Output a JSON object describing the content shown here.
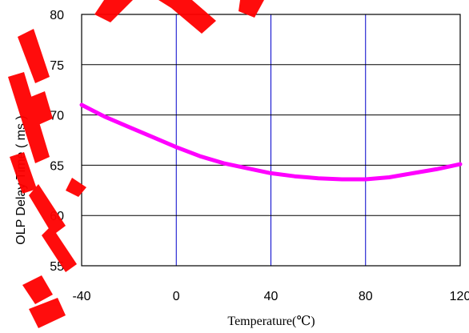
{
  "chart_data": {
    "type": "line",
    "xlabel": "Temperature(℃)",
    "ylabel": "OLP Delay Time ( ms )",
    "xlim": [
      -40,
      120
    ],
    "ylim": [
      55,
      80
    ],
    "x_ticks": [
      -40,
      0,
      40,
      80,
      120
    ],
    "y_ticks": [
      55,
      60,
      65,
      70,
      75,
      80
    ],
    "x_tick_labels": [
      "-40",
      "0",
      "40",
      "80",
      "120"
    ],
    "y_tick_labels": [
      "55",
      "60",
      "65",
      "70",
      "75",
      "80"
    ],
    "grid": true,
    "colors": {
      "line": "#ff00ff",
      "horizontal_grid": "#000000",
      "vertical_grid": "#0000cc",
      "frame": "#000000",
      "watermark": "#ff0000"
    },
    "series": [
      {
        "x": [
          -40,
          -30,
          -20,
          -10,
          0,
          10,
          20,
          30,
          40,
          50,
          60,
          70,
          80,
          90,
          100,
          110,
          120
        ],
        "values": [
          71.0,
          69.8,
          68.8,
          67.8,
          66.8,
          65.9,
          65.2,
          64.7,
          64.2,
          63.9,
          63.7,
          63.6,
          63.6,
          63.8,
          64.2,
          64.6,
          65.1
        ]
      }
    ]
  }
}
